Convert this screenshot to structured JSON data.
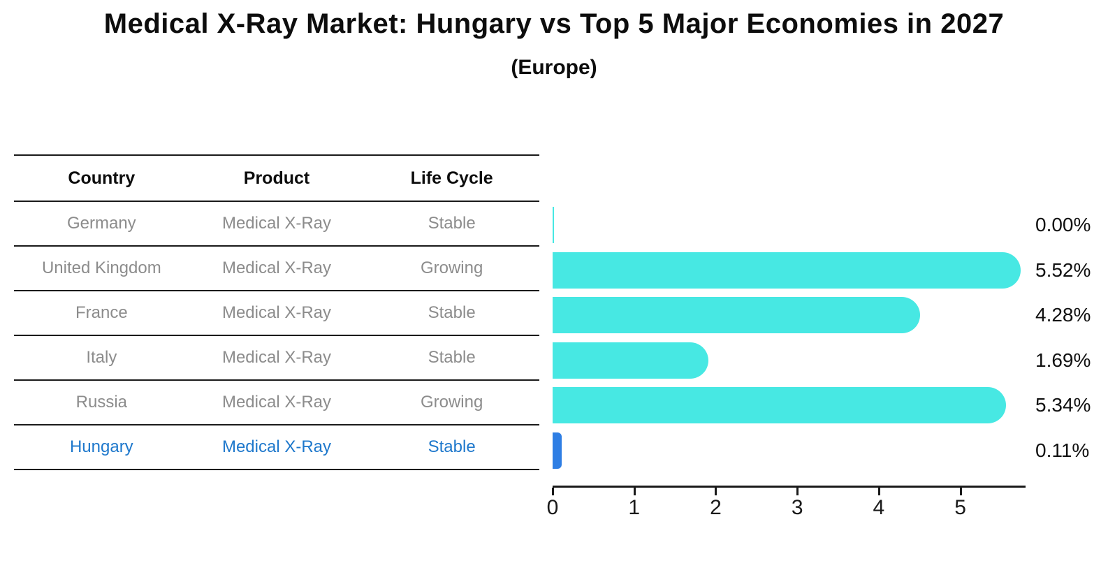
{
  "title": "Medical X-Ray Market: Hungary vs Top 5 Major Economies in 2027",
  "subtitle": "(Europe)",
  "table": {
    "headers": [
      "Country",
      "Product",
      "Life Cycle"
    ],
    "rows": [
      {
        "country": "Germany",
        "product": "Medical X-Ray",
        "life_cycle": "Stable",
        "highlighted": false
      },
      {
        "country": "United Kingdom",
        "product": "Medical X-Ray",
        "life_cycle": "Growing",
        "highlighted": false
      },
      {
        "country": "France",
        "product": "Medical X-Ray",
        "life_cycle": "Stable",
        "highlighted": false
      },
      {
        "country": "Italy",
        "product": "Medical X-Ray",
        "life_cycle": "Stable",
        "highlighted": false
      },
      {
        "country": "Russia",
        "product": "Medical X-Ray",
        "life_cycle": "Growing",
        "highlighted": false
      },
      {
        "country": "Hungary",
        "product": "Medical X-Ray",
        "life_cycle": "Stable",
        "highlighted": true
      }
    ]
  },
  "chart_data": {
    "type": "bar",
    "orientation": "horizontal",
    "title": "Medical X-Ray Market: Hungary vs Top 5 Major Economies in 2027 (Europe)",
    "categories": [
      "Germany",
      "United Kingdom",
      "France",
      "Italy",
      "Russia",
      "Hungary"
    ],
    "values": [
      0.0,
      5.52,
      4.28,
      1.69,
      5.34,
      0.11
    ],
    "value_labels": [
      "0.00%",
      "5.52%",
      "4.28%",
      "1.69%",
      "5.34%",
      "0.11%"
    ],
    "unit": "percent",
    "xticks": [
      "0",
      "1",
      "2",
      "3",
      "4",
      "5"
    ],
    "xlim": [
      0,
      5.8
    ],
    "grid": false,
    "legend": "none",
    "bar_color": "#47e8e3",
    "highlight_color": "#2e7ee4",
    "highlight_index": 5,
    "highlight_text_color": "#1e78cc"
  }
}
